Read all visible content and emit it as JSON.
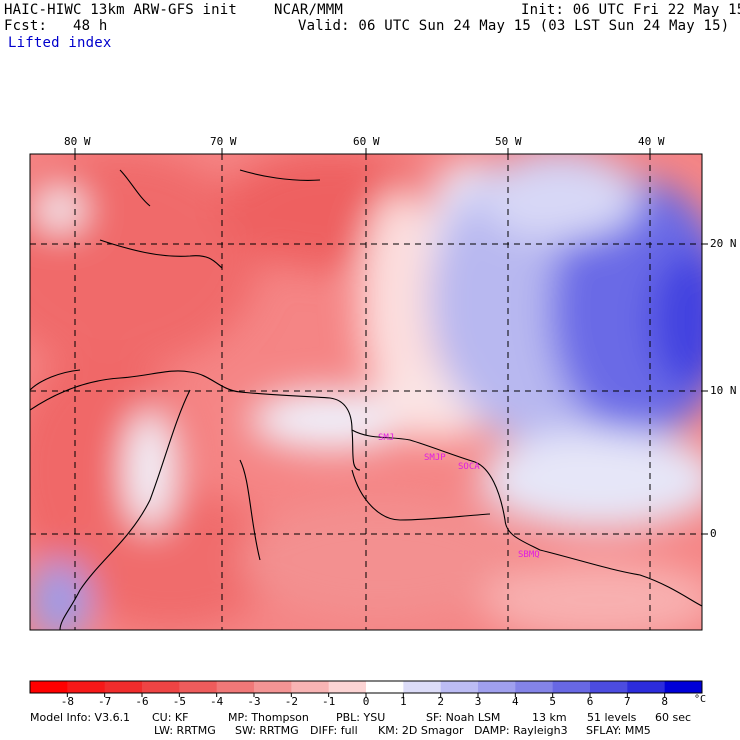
{
  "header": {
    "model": "HAIC-HIWC 13km ARW-GFS init",
    "org": "NCAR/MMM",
    "init": "Init: 06 UTC Fri 22 May 15",
    "fcst": "Fcst:   48 h",
    "valid": "Valid: 06 UTC Sun 24 May 15 (03 LST Sun 24 May 15)",
    "field": "Lifted index"
  },
  "map": {
    "lon_labels": [
      "80 W",
      "70 W",
      "60 W",
      "50 W",
      "40 W"
    ],
    "lat_labels": [
      "20 N",
      "10 N",
      "0"
    ],
    "station_labels": [
      "SMJ",
      "SOCA",
      "SBMQ"
    ],
    "colors": {
      "strong_negative": "#ee2020",
      "moderate_negative": "#f07575",
      "weak_negative": "#f8bcbc",
      "neutral": "#ffffff",
      "weak_positive": "#c8c8f4",
      "moderate_positive": "#8c8ce8",
      "strong_positive": "#4848e4",
      "station_label": "#e020e0"
    }
  },
  "colorbar": {
    "ticks": [
      "-8",
      "-7",
      "-6",
      "-5",
      "-4",
      "-3",
      "-2",
      "-1",
      "0",
      "1",
      "2",
      "3",
      "4",
      "5",
      "6",
      "7",
      "8"
    ],
    "unit": "°C",
    "colors": [
      "#ff0000",
      "#f71818",
      "#f02c2c",
      "#ee4444",
      "#ee5c5c",
      "#f07878",
      "#f49494",
      "#f8b4b4",
      "#fcd4d4",
      "#ffffff",
      "#dcdcf8",
      "#bcbcf4",
      "#a0a0ee",
      "#8484e8",
      "#6868e4",
      "#4c4ce0",
      "#2c2cdc",
      "#0000d8"
    ]
  },
  "footer": {
    "line1": [
      "Model Info: V3.6.1",
      "CU: KF",
      "MP: Thompson",
      "PBL: YSU",
      "SF: Noah LSM",
      "13 km",
      "51 levels",
      "60 sec"
    ],
    "line2": [
      "LW: RRTMG",
      "SW: RRTMG",
      "DIFF: full",
      "KM: 2D Smagor",
      "DAMP: Rayleigh3",
      "SFLAY: MM5"
    ]
  }
}
